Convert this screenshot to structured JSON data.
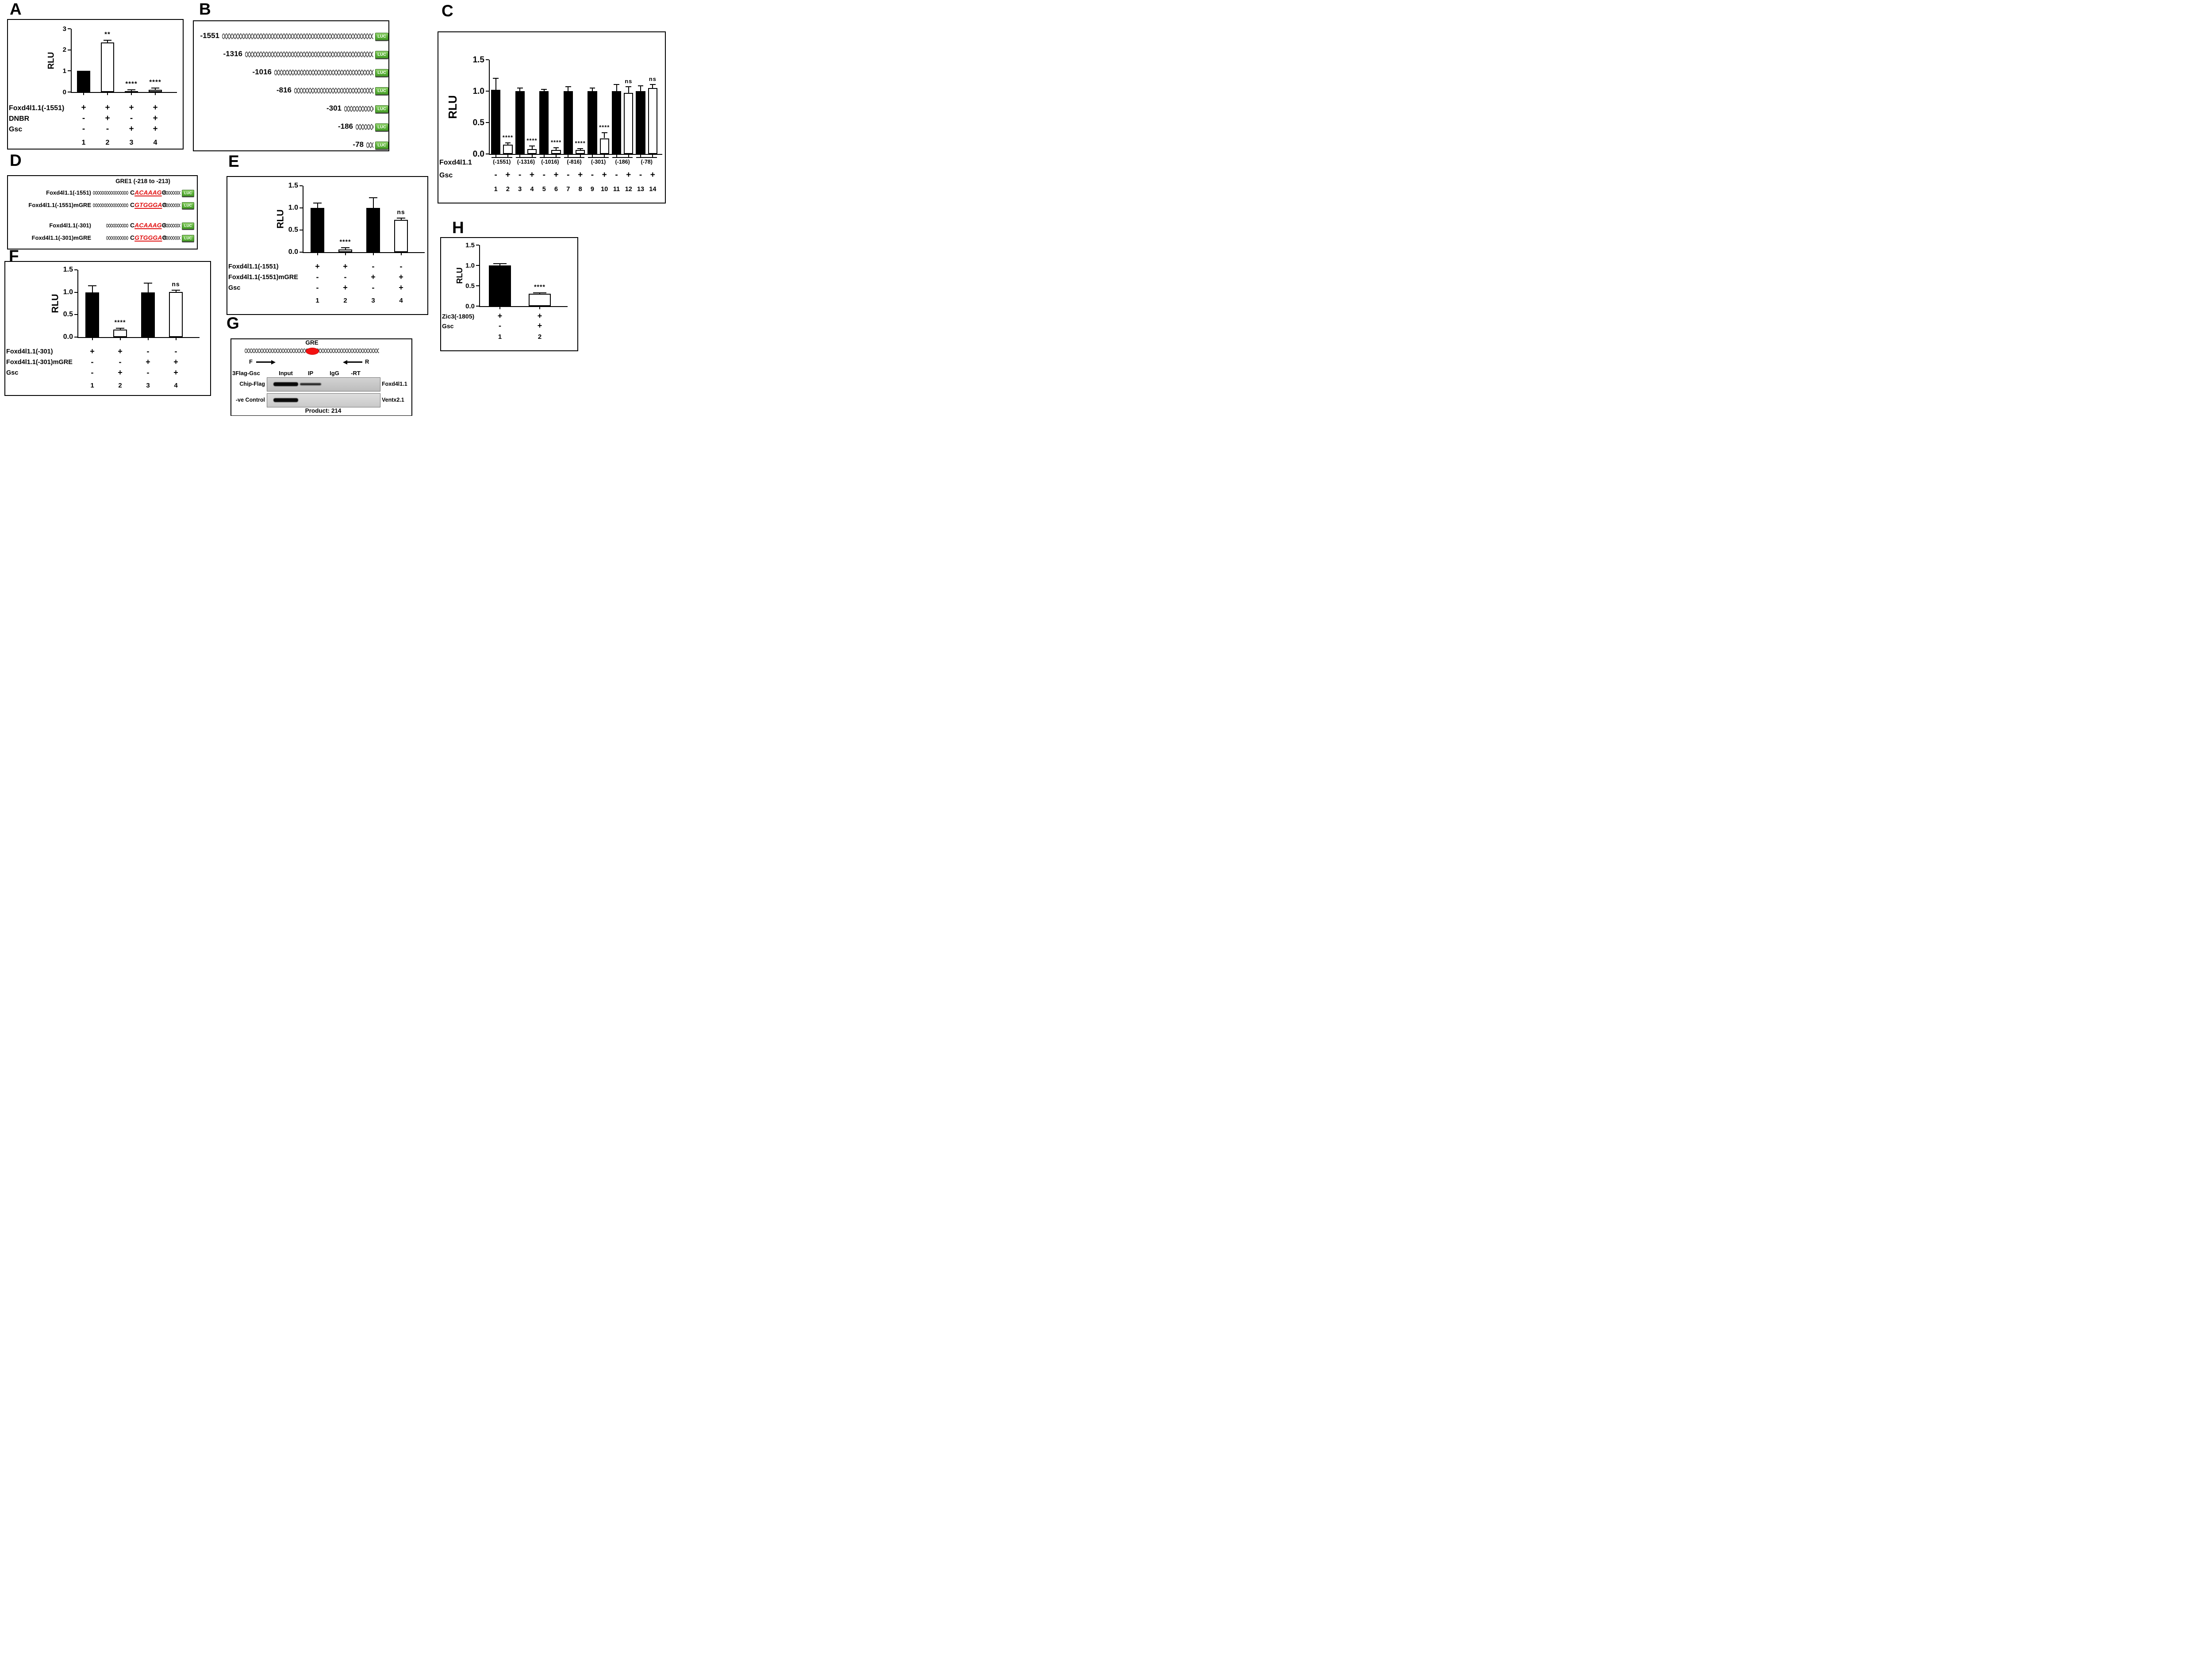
{
  "colors": {
    "luc_green": "#5cb23a",
    "luc_light": "#96d572",
    "gre_red": "#f31111",
    "seq_red": "#e01010",
    "bar_black": "#000000",
    "bar_white": "#ffffff"
  },
  "panels": {
    "A": {
      "letter": "A"
    },
    "B": {
      "letter": "B",
      "luc_label": "LUC",
      "constructs": [
        {
          "label": "-1551",
          "bp": 1551
        },
        {
          "label": "-1316",
          "bp": 1316
        },
        {
          "label": "-1016",
          "bp": 1016
        },
        {
          "label": "-816",
          "bp": 816
        },
        {
          "label": "-301",
          "bp": 301
        },
        {
          "label": "-186",
          "bp": 186
        },
        {
          "label": "-78",
          "bp": 78
        }
      ]
    },
    "C": {
      "letter": "C"
    },
    "D": {
      "letter": "D",
      "title": "GRE1 (-218 to -213)",
      "luc_label": "LUC",
      "rows": [
        {
          "label": "Foxd4l1.1(-1551)",
          "pre": "C",
          "core": "ACAAAG",
          "post": "G"
        },
        {
          "label": "Foxd4l1.1(-1551)mGRE",
          "pre": "C",
          "core": "GTGGGA",
          "post": "G"
        },
        {
          "label": "Foxd4l1.1(-301)",
          "pre": "C",
          "core": "ACAAAG",
          "post": "G"
        },
        {
          "label": "Foxd4l1.1(-301)mGRE",
          "pre": "C",
          "core": "GTGGGA",
          "post": "G"
        }
      ]
    },
    "E": {
      "letter": "E"
    },
    "F": {
      "letter": "F"
    },
    "G": {
      "letter": "G",
      "gre_label": "GRE",
      "forward_label": "F",
      "reverse_label": "R",
      "header_label": "3Flag-Gsc",
      "columns": [
        "Input",
        "IP",
        "IgG",
        "-RT"
      ],
      "gels": [
        {
          "row_label": "Chip-Flag",
          "target_label": "Foxd4l1.1",
          "bands": [
            {
              "lane": "Input",
              "strength": "strong"
            },
            {
              "lane": "IP",
              "strength": "weak"
            }
          ]
        },
        {
          "row_label": "-ve Control",
          "target_label": "Ventx2.1",
          "bands": [
            {
              "lane": "Input",
              "strength": "strong"
            }
          ]
        }
      ],
      "product_label": "Product: 214"
    },
    "H": {
      "letter": "H"
    }
  },
  "chart_data": [
    {
      "id": "A",
      "type": "bar",
      "title": "",
      "xlabel": "",
      "ylabel": "RLU",
      "ylim": [
        0,
        3
      ],
      "grid": false,
      "legend": "none",
      "yticks": [
        {
          "v": 0,
          "label": "0"
        },
        {
          "v": 1,
          "label": "1"
        },
        {
          "v": 2,
          "label": "2"
        },
        {
          "v": 3,
          "label": "3"
        }
      ],
      "values": [
        1.0,
        2.35,
        0.05,
        0.1
      ],
      "errors": [
        0,
        0.08,
        0.03,
        0.07
      ],
      "bar_colors": [
        "black",
        "white",
        "black",
        "white"
      ],
      "significance": [
        "",
        "**",
        "****",
        "****"
      ],
      "conditions": [
        {
          "label": "Foxd4l1.1(-1551)",
          "values": [
            "+",
            "+",
            "+",
            "+"
          ]
        },
        {
          "label": "DNBR",
          "values": [
            "-",
            "+",
            "-",
            "+"
          ]
        },
        {
          "label": "Gsc",
          "values": [
            "-",
            "-",
            "+",
            "+"
          ]
        }
      ],
      "lanes": [
        "1",
        "2",
        "3",
        "4"
      ]
    },
    {
      "id": "C",
      "type": "bar",
      "title": "",
      "xlabel": "",
      "ylabel": "RLU",
      "ylim": [
        0,
        1.5
      ],
      "grid": false,
      "legend": "none",
      "yticks": [
        {
          "v": 0,
          "label": "0.0"
        },
        {
          "v": 0.5,
          "label": "0.5"
        },
        {
          "v": 1.0,
          "label": "1.0"
        },
        {
          "v": 1.5,
          "label": "1.5"
        }
      ],
      "values": [
        1.02,
        0.15,
        1.0,
        0.08,
        1.0,
        0.06,
        1.0,
        0.06,
        1.0,
        0.25,
        1.0,
        0.97,
        1.0,
        1.05
      ],
      "errors": [
        0.18,
        0.02,
        0.04,
        0.04,
        0.02,
        0.03,
        0.06,
        0.02,
        0.04,
        0.08,
        0.1,
        0.09,
        0.08,
        0.05
      ],
      "bar_colors": [
        "black",
        "white",
        "black",
        "white",
        "black",
        "white",
        "black",
        "white",
        "black",
        "white",
        "black",
        "white",
        "black",
        "white"
      ],
      "significance": [
        "",
        "****",
        "",
        "****",
        "",
        "****",
        "",
        "****",
        "",
        "****",
        "",
        "ns",
        "",
        "ns"
      ],
      "group_label": "Foxd4l1.1",
      "groups": [
        "(-1551)",
        "(-1316)",
        "(-1016)",
        "(-816)",
        "(-301)",
        "(-186)",
        "(-78)"
      ],
      "conditions": [
        {
          "label": "Gsc",
          "values": [
            "-",
            "+",
            "-",
            "+",
            "-",
            "+",
            "-",
            "+",
            "-",
            "+",
            "-",
            "+",
            "-",
            "+"
          ]
        }
      ],
      "lanes": [
        "1",
        "2",
        "3",
        "4",
        "5",
        "6",
        "7",
        "8",
        "9",
        "10",
        "11",
        "12",
        "13",
        "14"
      ]
    },
    {
      "id": "E",
      "type": "bar",
      "title": "",
      "xlabel": "",
      "ylabel": "RLU",
      "ylim": [
        0,
        1.5
      ],
      "grid": false,
      "legend": "none",
      "yticks": [
        {
          "v": 0,
          "label": "0.0"
        },
        {
          "v": 0.5,
          "label": "0.5"
        },
        {
          "v": 1.0,
          "label": "1.0"
        },
        {
          "v": 1.5,
          "label": "1.5"
        }
      ],
      "values": [
        1.0,
        0.06,
        1.0,
        0.73
      ],
      "errors": [
        0.1,
        0.03,
        0.22,
        0.03
      ],
      "bar_colors": [
        "black",
        "white",
        "black",
        "white"
      ],
      "significance": [
        "",
        "****",
        "",
        "ns"
      ],
      "conditions": [
        {
          "label": "Foxd4l1.1(-1551)",
          "values": [
            "+",
            "+",
            "-",
            "-"
          ]
        },
        {
          "label": "Foxd4l1.1(-1551)mGRE",
          "values": [
            "-",
            "-",
            "+",
            "+"
          ]
        },
        {
          "label": "Gsc",
          "values": [
            "-",
            "+",
            "-",
            "+"
          ]
        }
      ],
      "lanes": [
        "1",
        "2",
        "3",
        "4"
      ]
    },
    {
      "id": "F",
      "type": "bar",
      "title": "",
      "xlabel": "",
      "ylabel": "RLU",
      "ylim": [
        0,
        1.5
      ],
      "grid": false,
      "legend": "none",
      "yticks": [
        {
          "v": 0,
          "label": "0.0"
        },
        {
          "v": 0.5,
          "label": "0.5"
        },
        {
          "v": 1.0,
          "label": "1.0"
        },
        {
          "v": 1.5,
          "label": "1.5"
        }
      ],
      "values": [
        1.0,
        0.17,
        1.0,
        1.01
      ],
      "errors": [
        0.13,
        0.02,
        0.19,
        0.03
      ],
      "bar_colors": [
        "black",
        "white",
        "black",
        "white"
      ],
      "significance": [
        "",
        "****",
        "",
        "ns"
      ],
      "conditions": [
        {
          "label": "Foxd4l1.1(-301)",
          "values": [
            "+",
            "+",
            "-",
            "-"
          ]
        },
        {
          "label": "Foxd4l1.1(-301)mGRE",
          "values": [
            "-",
            "-",
            "+",
            "+"
          ]
        },
        {
          "label": "Gsc",
          "values": [
            "-",
            "+",
            "-",
            "+"
          ]
        }
      ],
      "lanes": [
        "1",
        "2",
        "3",
        "4"
      ]
    },
    {
      "id": "H",
      "type": "bar",
      "title": "",
      "xlabel": "",
      "ylabel": "RLU",
      "ylim": [
        0,
        1.5
      ],
      "grid": false,
      "legend": "none",
      "yticks": [
        {
          "v": 0,
          "label": "0.0"
        },
        {
          "v": 0.5,
          "label": "0.5"
        },
        {
          "v": 1.0,
          "label": "1.0"
        },
        {
          "v": 1.5,
          "label": "1.5"
        }
      ],
      "values": [
        1.0,
        0.3
      ],
      "errors": [
        0.03,
        0.02
      ],
      "bar_colors": [
        "black",
        "white"
      ],
      "significance": [
        "",
        "****"
      ],
      "conditions": [
        {
          "label": "Zic3(-1805)",
          "values": [
            "+",
            "+"
          ]
        },
        {
          "label": "Gsc",
          "values": [
            "-",
            "+"
          ]
        }
      ],
      "lanes": [
        "1",
        "2"
      ]
    }
  ]
}
